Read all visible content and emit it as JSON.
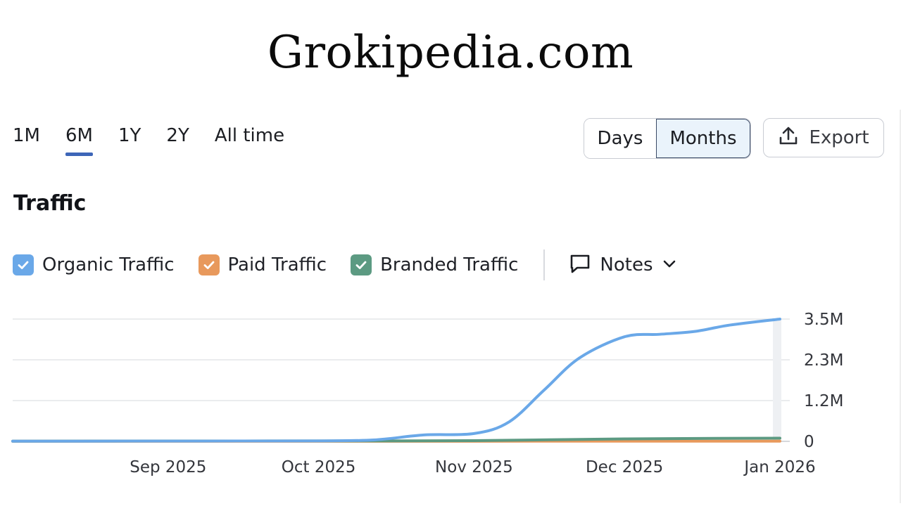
{
  "site_title": "Grokipedia.com",
  "range_tabs": [
    "1M",
    "6M",
    "1Y",
    "2Y",
    "All time"
  ],
  "active_range": "6M",
  "granularity": {
    "days_label": "Days",
    "months_label": "Months",
    "selected": "Months"
  },
  "export_label": "Export",
  "section_title": "Traffic",
  "legend": [
    {
      "label": "Organic Traffic",
      "color": "#6aa8e8",
      "checked": true
    },
    {
      "label": "Paid Traffic",
      "color": "#e8995c",
      "checked": true
    },
    {
      "label": "Branded Traffic",
      "color": "#5c9a82",
      "checked": true
    }
  ],
  "notes_label": "Notes",
  "chart_data": {
    "type": "line",
    "x_ticks": [
      "Sep 2025",
      "Oct 2025",
      "Nov 2025",
      "Dec 2025",
      "Jan 2026"
    ],
    "y_ticks": [
      "0",
      "1.2M",
      "2.3M",
      "3.5M"
    ],
    "y_tick_values": [
      0,
      1150000,
      2300000,
      3450000
    ],
    "ylim": [
      0,
      3450000
    ],
    "xlim": [
      "2025-08-01",
      "2026-01-01"
    ],
    "grid": true,
    "series": [
      {
        "name": "Organic Traffic",
        "color": "#6aa8e8",
        "points": [
          [
            "2025-08-01",
            5000
          ],
          [
            "2025-08-15",
            6000
          ],
          [
            "2025-09-01",
            8000
          ],
          [
            "2025-09-15",
            9000
          ],
          [
            "2025-10-01",
            12000
          ],
          [
            "2025-10-12",
            40000
          ],
          [
            "2025-10-22",
            180000
          ],
          [
            "2025-11-01",
            220000
          ],
          [
            "2025-11-08",
            550000
          ],
          [
            "2025-11-15",
            1450000
          ],
          [
            "2025-11-22",
            2350000
          ],
          [
            "2025-12-01",
            2950000
          ],
          [
            "2025-12-08",
            3020000
          ],
          [
            "2025-12-15",
            3100000
          ],
          [
            "2025-12-22",
            3280000
          ],
          [
            "2026-01-01",
            3450000
          ]
        ]
      },
      {
        "name": "Paid Traffic",
        "color": "#e8995c",
        "points": [
          [
            "2025-08-01",
            2000
          ],
          [
            "2025-09-01",
            2000
          ],
          [
            "2025-10-01",
            2000
          ],
          [
            "2025-11-01",
            3000
          ],
          [
            "2025-12-01",
            5000
          ],
          [
            "2026-01-01",
            6000
          ]
        ]
      },
      {
        "name": "Branded Traffic",
        "color": "#5c9a82",
        "points": [
          [
            "2025-08-01",
            4000
          ],
          [
            "2025-09-01",
            10000
          ],
          [
            "2025-10-01",
            12000
          ],
          [
            "2025-11-01",
            20000
          ],
          [
            "2025-12-01",
            70000
          ],
          [
            "2026-01-01",
            90000
          ]
        ]
      }
    ]
  }
}
